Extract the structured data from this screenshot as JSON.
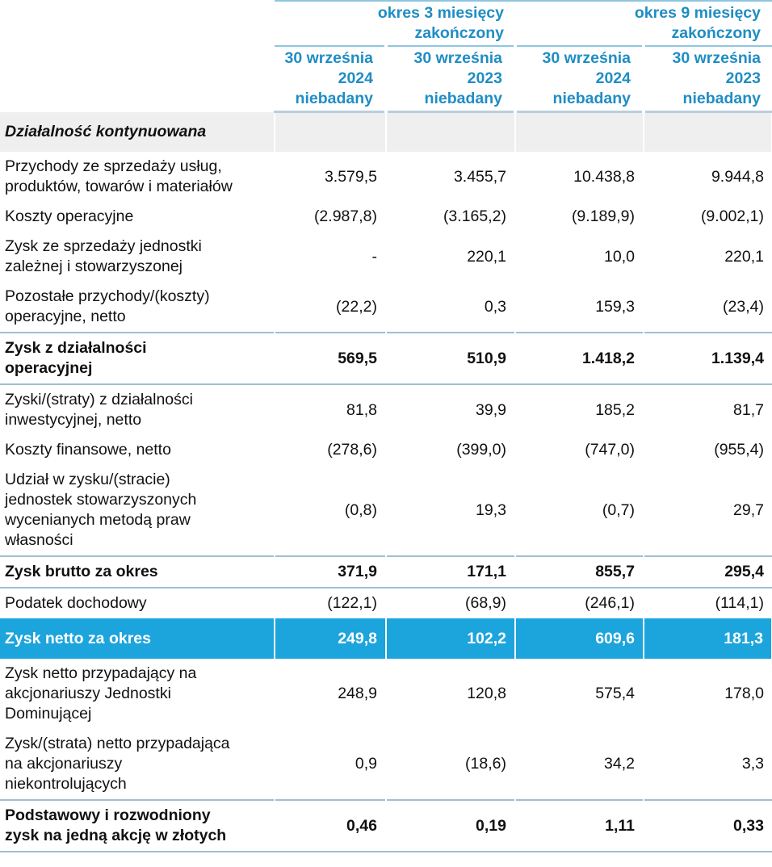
{
  "header": {
    "groups": [
      [
        "okres 3 miesięcy",
        "zakończony"
      ],
      [
        "okres 9 miesięcy",
        "zakończony"
      ]
    ],
    "columns": [
      [
        "30 września",
        "2024",
        "niebadany"
      ],
      [
        "30 września",
        "2023",
        "niebadany"
      ],
      [
        "30 września",
        "2024",
        "niebadany"
      ],
      [
        "30 września",
        "2023",
        "niebadany"
      ]
    ]
  },
  "section": "Działalność kontynuowana",
  "rows": [
    {
      "label": [
        "Przychody ze sprzedaży usług,",
        "produktów, towarów i materiałów"
      ],
      "values": [
        "3.579,5",
        "3.455,7",
        "10.438,8",
        "9.944,8"
      ]
    },
    {
      "label": [
        "Koszty operacyjne"
      ],
      "values": [
        "(2.987,8)",
        "(3.165,2)",
        "(9.189,9)",
        "(9.002,1)"
      ]
    },
    {
      "label": [
        "Zysk ze sprzedaży jednostki",
        "zależnej i stowarzyszonej"
      ],
      "values": [
        "-",
        "220,1",
        "10,0",
        "220,1"
      ]
    },
    {
      "label": [
        "Pozostałe przychody/(koszty)",
        "operacyjne, netto"
      ],
      "values": [
        "(22,2)",
        "0,3",
        "159,3",
        "(23,4)"
      ]
    },
    {
      "label": [
        "Zysk z działalności",
        "operacyjnej"
      ],
      "values": [
        "569,5",
        "510,9",
        "1.418,2",
        "1.139,4"
      ],
      "emphasis": "bold"
    },
    {
      "label": [
        "Zyski/(straty) z działalności",
        "inwestycyjnej, netto"
      ],
      "values": [
        "81,8",
        "39,9",
        "185,2",
        "81,7"
      ]
    },
    {
      "label": [
        "Koszty finansowe, netto"
      ],
      "values": [
        "(278,6)",
        "(399,0)",
        "(747,0)",
        "(955,4)"
      ]
    },
    {
      "label": [
        "Udział w zysku/(stracie)",
        "jednostek stowarzyszonych",
        "wycenianych metodą praw",
        "własności"
      ],
      "values": [
        "(0,8)",
        "19,3",
        "(0,7)",
        "29,7"
      ]
    },
    {
      "label": [
        "Zysk brutto za okres"
      ],
      "values": [
        "371,9",
        "171,1",
        "855,7",
        "295,4"
      ],
      "emphasis": "bold"
    },
    {
      "label": [
        "Podatek dochodowy"
      ],
      "values": [
        "(122,1)",
        "(68,9)",
        "(246,1)",
        "(114,1)"
      ]
    },
    {
      "label": [
        "Zysk netto za okres"
      ],
      "values": [
        "249,8",
        "102,2",
        "609,6",
        "181,3"
      ],
      "emphasis": "highlight"
    },
    {
      "label": [
        "Zysk netto przypadający na",
        "akcjonariuszy Jednostki",
        "Dominującej"
      ],
      "values": [
        "248,9",
        "120,8",
        "575,4",
        "178,0"
      ]
    },
    {
      "label": [
        "Zysk/(strata) netto przypadająca",
        "na akcjonariuszy",
        "niekontrolujących"
      ],
      "values": [
        "0,9",
        "(18,6)",
        "34,2",
        "3,3"
      ]
    },
    {
      "label": [
        "Podstawowy i rozwodniony",
        "zysk na jedną akcję w złotych"
      ],
      "values": [
        "0,46",
        "0,19",
        "1,11",
        "0,33"
      ],
      "emphasis": "bold"
    }
  ]
}
